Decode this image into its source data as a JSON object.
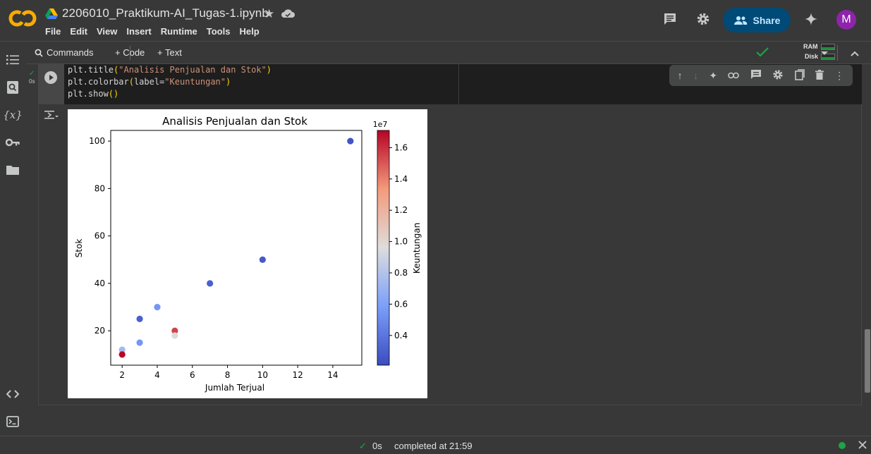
{
  "notebook": {
    "title": "2206010_Praktikum-AI_Tugas-1.ipynb",
    "menu": [
      "File",
      "Edit",
      "View",
      "Insert",
      "Runtime",
      "Tools",
      "Help"
    ]
  },
  "header": {
    "share_label": "Share",
    "avatar_letter": "M"
  },
  "toolbar": {
    "commands_label": "Commands",
    "code_label": "+ Code",
    "text_label": "+ Text",
    "ram_label": "RAM",
    "disk_label": "Disk"
  },
  "cell": {
    "exec_time": "0s",
    "code_lines": [
      {
        "fn": "plt.title",
        "arg": "\"Analisis Penjualan dan Stok\""
      },
      {
        "fn": "plt.colorbar",
        "arg": "label=\"Keuntungan\""
      },
      {
        "fn": "plt.show",
        "arg": ""
      }
    ]
  },
  "chart_data": {
    "type": "scatter",
    "title": "Analisis Penjualan dan Stok",
    "xlabel": "Jumlah Terjual",
    "ylabel": "Stok",
    "xlim": [
      1.35,
      15.65
    ],
    "ylim": [
      5.5,
      104.5
    ],
    "xticks": [
      "2",
      "4",
      "6",
      "8",
      "10",
      "12",
      "14"
    ],
    "yticks": [
      "20",
      "40",
      "60",
      "80",
      "100"
    ],
    "colorbar": {
      "label": "Keuntungan",
      "exponent": "1e7",
      "ticks": [
        "0.4",
        "0.6",
        "0.8",
        "1.0",
        "1.2",
        "1.4",
        "1.6"
      ],
      "range": [
        0.21,
        1.71
      ],
      "colormap": "coolwarm"
    },
    "points": [
      {
        "x": 15,
        "y": 100,
        "c": 0.25
      },
      {
        "x": 10,
        "y": 50,
        "c": 0.27
      },
      {
        "x": 7,
        "y": 40,
        "c": 0.3
      },
      {
        "x": 4,
        "y": 30,
        "c": 0.55
      },
      {
        "x": 3,
        "y": 25,
        "c": 0.3
      },
      {
        "x": 5,
        "y": 20,
        "c": 1.55
      },
      {
        "x": 5,
        "y": 18,
        "c": 0.95
      },
      {
        "x": 3,
        "y": 15,
        "c": 0.55
      },
      {
        "x": 2,
        "y": 12,
        "c": 0.75
      },
      {
        "x": 2,
        "y": 10,
        "c": 1.7
      }
    ]
  },
  "statusbar": {
    "exec_time": "0s",
    "completed_text": "completed at 21:59"
  },
  "colors": {
    "accent_green": "#1ea446",
    "share_bg": "#004a77",
    "avatar_bg": "#8e24aa"
  }
}
